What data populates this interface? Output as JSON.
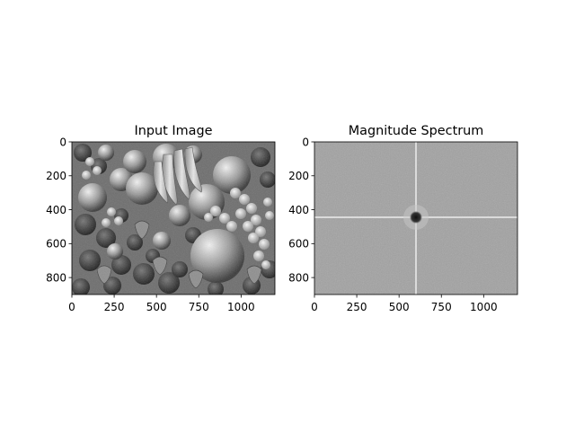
{
  "figure": {
    "background": "#ffffff"
  },
  "chart_data": [
    {
      "type": "image",
      "title": "Input Image",
      "xlabel": "",
      "ylabel": "",
      "xlim": [
        0,
        1200
      ],
      "ylim": [
        900,
        0
      ],
      "x_ticks": [
        0,
        250,
        500,
        750,
        1000
      ],
      "y_ticks": [
        0,
        200,
        400,
        600,
        800
      ],
      "colormap": "gray",
      "content": "grayscale photograph of a pile of fruit (bananas, apples, grapes, strawberries, blackberries)"
    },
    {
      "type": "image",
      "title": "Magnitude Spectrum",
      "xlabel": "",
      "ylabel": "",
      "xlim": [
        0,
        1200
      ],
      "ylim": [
        900,
        0
      ],
      "x_ticks": [
        0,
        250,
        500,
        750,
        1000
      ],
      "y_ticks": [
        0,
        200,
        400,
        600,
        800
      ],
      "colormap": "gray",
      "content": "centered 2D Fourier magnitude spectrum: uniform gray field with bright horizontal and vertical lines through the center and a dark blob at the center",
      "center": [
        600,
        450
      ]
    }
  ]
}
